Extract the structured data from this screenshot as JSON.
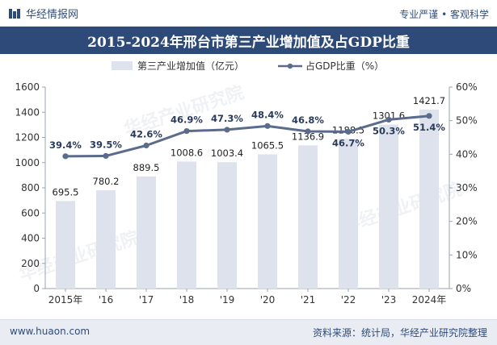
{
  "header": {
    "brand": "华经情报网",
    "tagline": "专业严谨 • 客观科学"
  },
  "chart_data": {
    "type": "bar+line",
    "title": "2015-2024年邢台市第三产业增加值及占GDP比重",
    "categories": [
      "2015年",
      "'16",
      "'17",
      "'18",
      "'19",
      "'20",
      "'21",
      "'22",
      "'23",
      "2024年"
    ],
    "series": [
      {
        "name": "第三产业增加值（亿元）",
        "type": "bar",
        "axis": "left",
        "color": "#dde2ec",
        "values": [
          695.5,
          780.2,
          889.5,
          1008.6,
          1003.4,
          1065.5,
          1136.9,
          1188.5,
          1301.6,
          1421.7
        ],
        "labels": [
          "695.5",
          "780.2",
          "889.5",
          "1008.6",
          "1003.4",
          "1065.5",
          "1136.9",
          "1188.5",
          "1301.6",
          "1421.7"
        ]
      },
      {
        "name": "占GDP比重（%）",
        "type": "line",
        "axis": "right",
        "color": "#5a6b8c",
        "values": [
          39.4,
          39.5,
          42.6,
          46.9,
          47.3,
          48.4,
          46.8,
          46.7,
          50.3,
          51.4
        ],
        "labels": [
          "39.4%",
          "39.5%",
          "42.6%",
          "46.9%",
          "47.3%",
          "48.4%",
          "46.8%",
          "46.7%",
          "50.3%",
          "51.4%"
        ]
      }
    ],
    "y_left": {
      "min": 0,
      "max": 1600,
      "ticks": [
        "0",
        "200",
        "400",
        "600",
        "800",
        "1000",
        "1200",
        "1400",
        "1600"
      ]
    },
    "y_right": {
      "min": 0,
      "max": 60,
      "ticks": [
        "0%",
        "10%",
        "20%",
        "30%",
        "40%",
        "50%",
        "60%"
      ]
    },
    "legend_position": "top",
    "grid": false
  },
  "watermark": "华经产业研究院",
  "footer": {
    "site": "www.huaon.com",
    "source": "资料来源：统计局，华经产业研究院整理"
  }
}
